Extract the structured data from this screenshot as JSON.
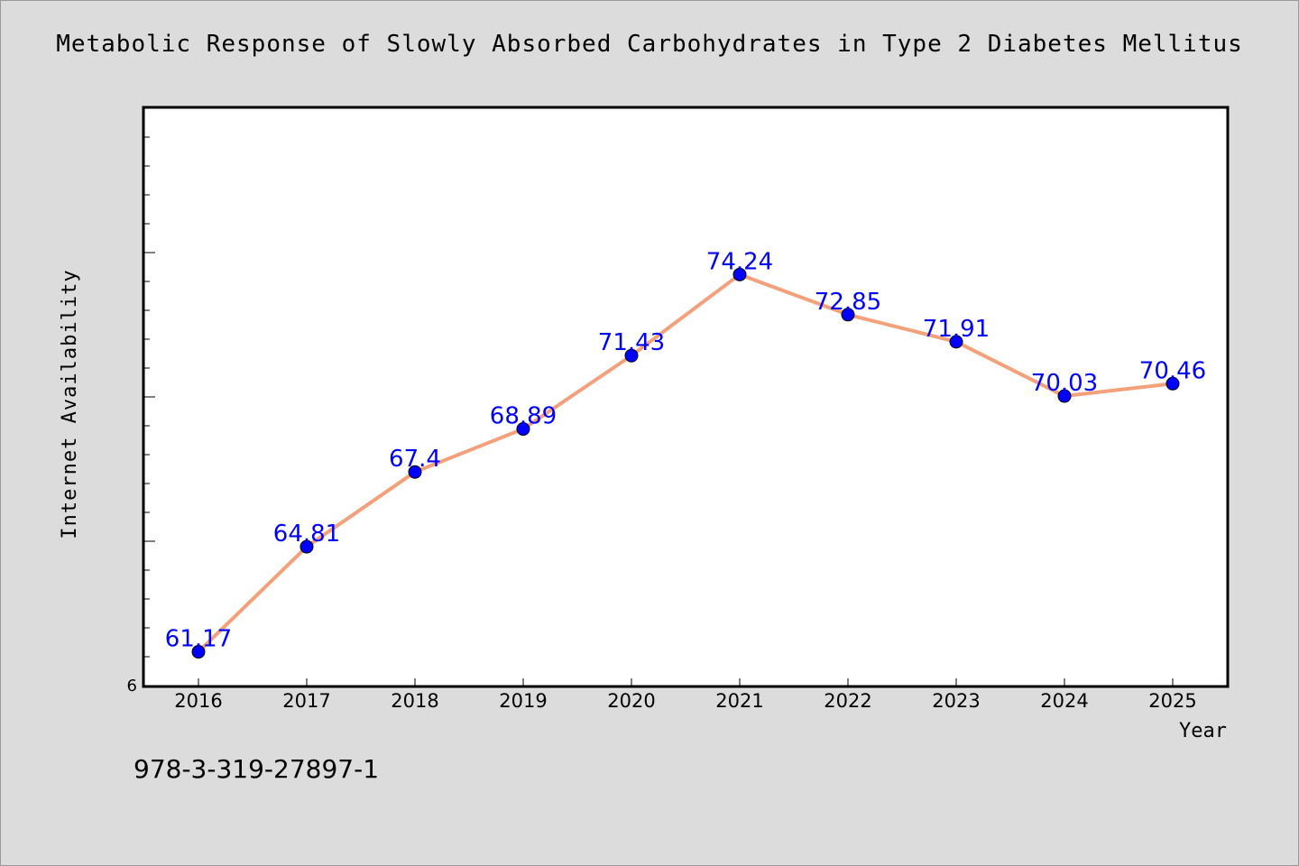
{
  "chart_data": {
    "type": "line",
    "title": "Metabolic Response of Slowly Absorbed Carbohydrates in Type 2 Diabetes Mellitus",
    "xlabel": "Year",
    "ylabel": "Internet Availability",
    "categories": [
      "2016",
      "2017",
      "2018",
      "2019",
      "2020",
      "2021",
      "2022",
      "2023",
      "2024",
      "2025"
    ],
    "values": [
      61.17,
      64.81,
      67.4,
      68.89,
      71.43,
      74.24,
      72.85,
      71.91,
      70.03,
      70.46
    ],
    "data_labels": [
      "61.17",
      "64.81",
      "67.4",
      "68.89",
      "71.43",
      "74.24",
      "72.85",
      "71.91",
      "70.03",
      "70.46"
    ],
    "y_tick_label": "6",
    "ylim": [
      60,
      80
    ],
    "grid": false,
    "legend": "none",
    "colors": {
      "line": "#f4a07a",
      "marker": "#0000ff",
      "label": "#0000ff"
    }
  },
  "footer": {
    "code": "978-3-319-27897-1"
  }
}
